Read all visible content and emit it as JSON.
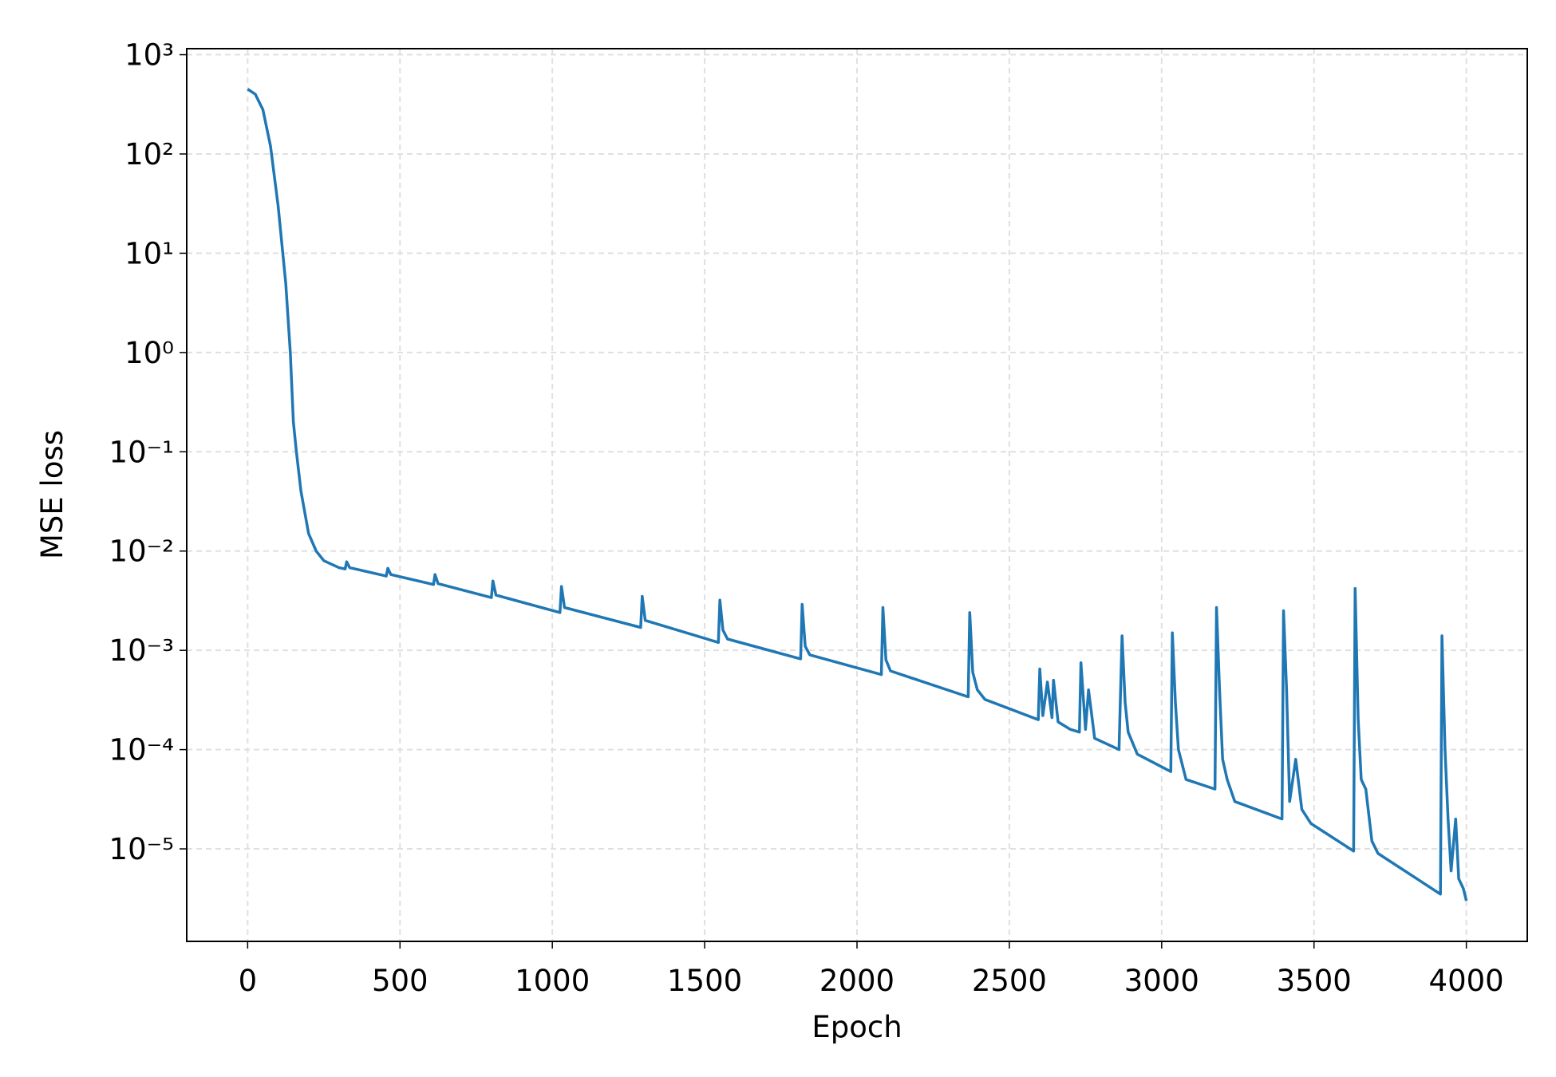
{
  "chart_data": {
    "type": "line",
    "xlabel": "Epoch",
    "ylabel": "MSE loss",
    "yscale": "log",
    "grid": true,
    "color": "#1f77b4",
    "xlim": [
      -200,
      4200
    ],
    "ylim": [
      1150,
      1.17e-06
    ],
    "xticks": [
      0,
      500,
      1000,
      1500,
      2000,
      2500,
      3000,
      3500,
      4000
    ],
    "yticks": [
      {
        "value": 1000,
        "label": "10³"
      },
      {
        "value": 100,
        "label": "10²"
      },
      {
        "value": 10,
        "label": "10¹"
      },
      {
        "value": 1,
        "label": "10⁰"
      },
      {
        "value": 0.1,
        "label": "10⁻¹"
      },
      {
        "value": 0.01,
        "label": "10⁻²"
      },
      {
        "value": 0.001,
        "label": "10⁻³"
      },
      {
        "value": 0.0001,
        "label": "10⁻⁴"
      },
      {
        "value": 1e-05,
        "label": "10⁻⁵"
      }
    ],
    "x": [
      0,
      25,
      50,
      75,
      100,
      125,
      140,
      150,
      160,
      175,
      200,
      225,
      250,
      300,
      320,
      325,
      335,
      455,
      460,
      470,
      610,
      615,
      625,
      800,
      805,
      815,
      1025,
      1030,
      1040,
      1290,
      1295,
      1305,
      1545,
      1550,
      1560,
      1575,
      1815,
      1820,
      1830,
      1845,
      2080,
      2085,
      2095,
      2110,
      2365,
      2370,
      2380,
      2395,
      2420,
      2595,
      2600,
      2610,
      2625,
      2640,
      2645,
      2660,
      2700,
      2730,
      2735,
      2750,
      2760,
      2780,
      2860,
      2870,
      2880,
      2890,
      2920,
      3030,
      3035,
      3045,
      3055,
      3080,
      3175,
      3180,
      3190,
      3200,
      3215,
      3240,
      3395,
      3400,
      3410,
      3420,
      3440,
      3460,
      3490,
      3630,
      3635,
      3645,
      3655,
      3670,
      3690,
      3710,
      3915,
      3920,
      3930,
      3940,
      3950,
      3965,
      3975,
      3990,
      4000
    ],
    "values": [
      450,
      400,
      280,
      120,
      30,
      5,
      1,
      0.2,
      0.1,
      0.04,
      0.015,
      0.01,
      0.008,
      0.0068,
      0.0066,
      0.0078,
      0.0068,
      0.0056,
      0.0067,
      0.0058,
      0.0046,
      0.0058,
      0.0047,
      0.0034,
      0.005,
      0.0036,
      0.0024,
      0.0044,
      0.0027,
      0.0017,
      0.0035,
      0.002,
      0.0012,
      0.0032,
      0.0016,
      0.0013,
      0.00082,
      0.0029,
      0.0011,
      0.0009,
      0.00057,
      0.0027,
      0.0008,
      0.00062,
      0.00034,
      0.0024,
      0.0006,
      0.0004,
      0.00032,
      0.0002,
      0.00065,
      0.00022,
      0.00048,
      0.00021,
      0.0005,
      0.00019,
      0.00016,
      0.00015,
      0.00075,
      0.00016,
      0.0004,
      0.00013,
      0.0001,
      0.0014,
      0.0003,
      0.00015,
      9e-05,
      6e-05,
      0.0015,
      0.0003,
      0.0001,
      5e-05,
      4e-05,
      0.0027,
      0.0004,
      8e-05,
      5e-05,
      3e-05,
      2e-05,
      0.0025,
      0.0004,
      3e-05,
      8e-05,
      2.5e-05,
      1.8e-05,
      9.5e-06,
      0.0042,
      0.0002,
      5e-05,
      4e-05,
      1.2e-05,
      9e-06,
      3.5e-06,
      0.0014,
      0.0001,
      2e-05,
      6e-06,
      2e-05,
      5e-06,
      4e-06,
      3e-06
    ]
  }
}
